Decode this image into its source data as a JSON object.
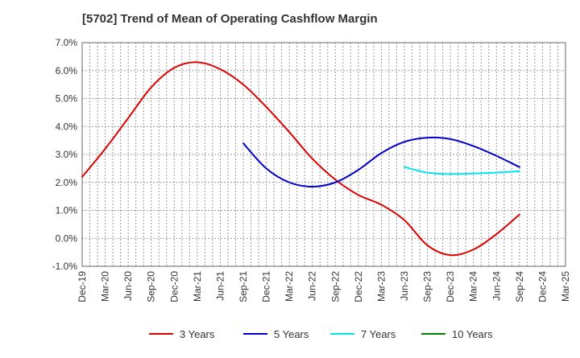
{
  "chart_data": {
    "type": "line",
    "title": "[5702]  Trend of Mean of Operating Cashflow Margin",
    "xlabel": "",
    "ylabel": "",
    "categories": [
      "Dec-19",
      "Mar-20",
      "Jun-20",
      "Sep-20",
      "Dec-20",
      "Mar-21",
      "Jun-21",
      "Sep-21",
      "Dec-21",
      "Mar-22",
      "Jun-22",
      "Sep-22",
      "Dec-22",
      "Mar-23",
      "Jun-23",
      "Sep-23",
      "Dec-23",
      "Mar-24",
      "Jun-24",
      "Sep-24",
      "Dec-24",
      "Mar-25"
    ],
    "y_ticks": [
      "7.0%",
      "6.0%",
      "5.0%",
      "4.0%",
      "3.0%",
      "2.0%",
      "1.0%",
      "0.0%",
      "-1.0%"
    ],
    "ylim": [
      -1.0,
      7.0
    ],
    "grid": true,
    "legend_position": "bottom",
    "series": [
      {
        "name": "3 Years",
        "color": "#dd0000",
        "values": [
          2.2,
          3.2,
          4.3,
          5.4,
          6.1,
          6.3,
          6.05,
          5.5,
          4.7,
          3.8,
          2.85,
          2.1,
          1.55,
          1.2,
          0.65,
          -0.25,
          -0.6,
          -0.4,
          0.15,
          0.85,
          null,
          null
        ]
      },
      {
        "name": "5 Years",
        "color": "#0000cc",
        "values": [
          null,
          null,
          null,
          null,
          null,
          null,
          null,
          3.4,
          2.5,
          2.0,
          1.85,
          2.0,
          2.45,
          3.05,
          3.45,
          3.6,
          3.55,
          3.3,
          2.95,
          2.55,
          null,
          null
        ]
      },
      {
        "name": "7 Years",
        "color": "#00e5ee",
        "values": [
          null,
          null,
          null,
          null,
          null,
          null,
          null,
          null,
          null,
          null,
          null,
          null,
          null,
          null,
          2.55,
          2.35,
          2.3,
          2.32,
          2.35,
          2.4,
          null,
          null
        ]
      },
      {
        "name": "10 Years",
        "color": "#008000",
        "values": [
          null,
          null,
          null,
          null,
          null,
          null,
          null,
          null,
          null,
          null,
          null,
          null,
          null,
          null,
          null,
          null,
          null,
          null,
          null,
          null,
          null,
          null
        ]
      }
    ]
  }
}
